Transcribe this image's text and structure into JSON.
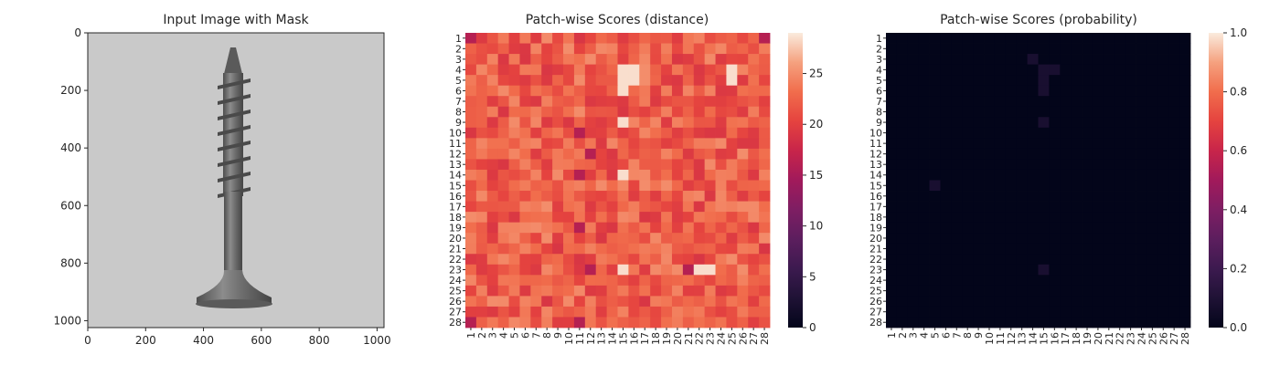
{
  "chart_data": [
    {
      "type": "image",
      "title": "Input Image with Mask",
      "xlabel": "",
      "ylabel": "",
      "xlim": [
        0,
        1024
      ],
      "ylim": [
        1024,
        0
      ],
      "x_ticks": [
        "0",
        "200",
        "400",
        "600",
        "800",
        "1000"
      ],
      "y_ticks": [
        "0",
        "200",
        "400",
        "600",
        "800",
        "1000"
      ],
      "image_subject": "screw",
      "colors": {
        "background": "#c9c9c9",
        "object": "#6b6b6b"
      }
    },
    {
      "type": "heatmap",
      "title": "Patch-wise Scores (distance)",
      "rows": 28,
      "cols": 28,
      "x_labels": [
        "1",
        "2",
        "3",
        "4",
        "5",
        "6",
        "7",
        "8",
        "9",
        "10",
        "11",
        "12",
        "13",
        "14",
        "15",
        "16",
        "17",
        "18",
        "19",
        "20",
        "21",
        "22",
        "23",
        "24",
        "25",
        "26",
        "27",
        "28"
      ],
      "y_labels": [
        "1",
        "2",
        "3",
        "4",
        "5",
        "6",
        "7",
        "8",
        "9",
        "10",
        "11",
        "12",
        "13",
        "14",
        "15",
        "16",
        "17",
        "18",
        "19",
        "20",
        "21",
        "22",
        "23",
        "24",
        "25",
        "26",
        "27",
        "28"
      ],
      "value_range": [
        0,
        29
      ],
      "typical_range": [
        16,
        28
      ],
      "high_score_cells": [
        [
          4,
          15
        ],
        [
          5,
          15
        ],
        [
          4,
          16
        ],
        [
          5,
          16
        ],
        [
          6,
          15
        ],
        [
          9,
          15
        ],
        [
          14,
          15
        ],
        [
          23,
          15
        ],
        [
          4,
          25
        ],
        [
          5,
          25
        ],
        [
          23,
          22
        ],
        [
          23,
          23
        ]
      ],
      "low_score_cells": [
        [
          1,
          1
        ],
        [
          1,
          28
        ],
        [
          28,
          1
        ],
        [
          28,
          11
        ],
        [
          10,
          11
        ],
        [
          14,
          11
        ],
        [
          19,
          11
        ],
        [
          12,
          12
        ],
        [
          23,
          12
        ],
        [
          23,
          21
        ]
      ],
      "colorbar_ticks": [
        "0",
        "5",
        "10",
        "15",
        "20",
        "25"
      ],
      "colormap": "rocket"
    },
    {
      "type": "heatmap",
      "title": "Patch-wise Scores (probability)",
      "rows": 28,
      "cols": 28,
      "x_labels": [
        "1",
        "2",
        "3",
        "4",
        "5",
        "6",
        "7",
        "8",
        "9",
        "10",
        "11",
        "12",
        "13",
        "14",
        "15",
        "16",
        "17",
        "18",
        "19",
        "20",
        "21",
        "22",
        "23",
        "24",
        "25",
        "26",
        "27",
        "28"
      ],
      "y_labels": [
        "1",
        "2",
        "3",
        "4",
        "5",
        "6",
        "7",
        "8",
        "9",
        "10",
        "11",
        "12",
        "13",
        "14",
        "15",
        "16",
        "17",
        "18",
        "19",
        "20",
        "21",
        "22",
        "23",
        "24",
        "25",
        "26",
        "27",
        "28"
      ],
      "value_range": [
        0,
        1
      ],
      "typical_value": 0.0,
      "hot_cells": [
        [
          3,
          14
        ],
        [
          4,
          15
        ],
        [
          5,
          15
        ],
        [
          6,
          15
        ],
        [
          4,
          16
        ],
        [
          23,
          15
        ],
        [
          9,
          15
        ],
        [
          15,
          5
        ]
      ],
      "hot_value": 0.08,
      "colorbar_ticks": [
        "0.0",
        "0.2",
        "0.4",
        "0.6",
        "0.8",
        "1.0"
      ],
      "colormap": "rocket"
    }
  ]
}
